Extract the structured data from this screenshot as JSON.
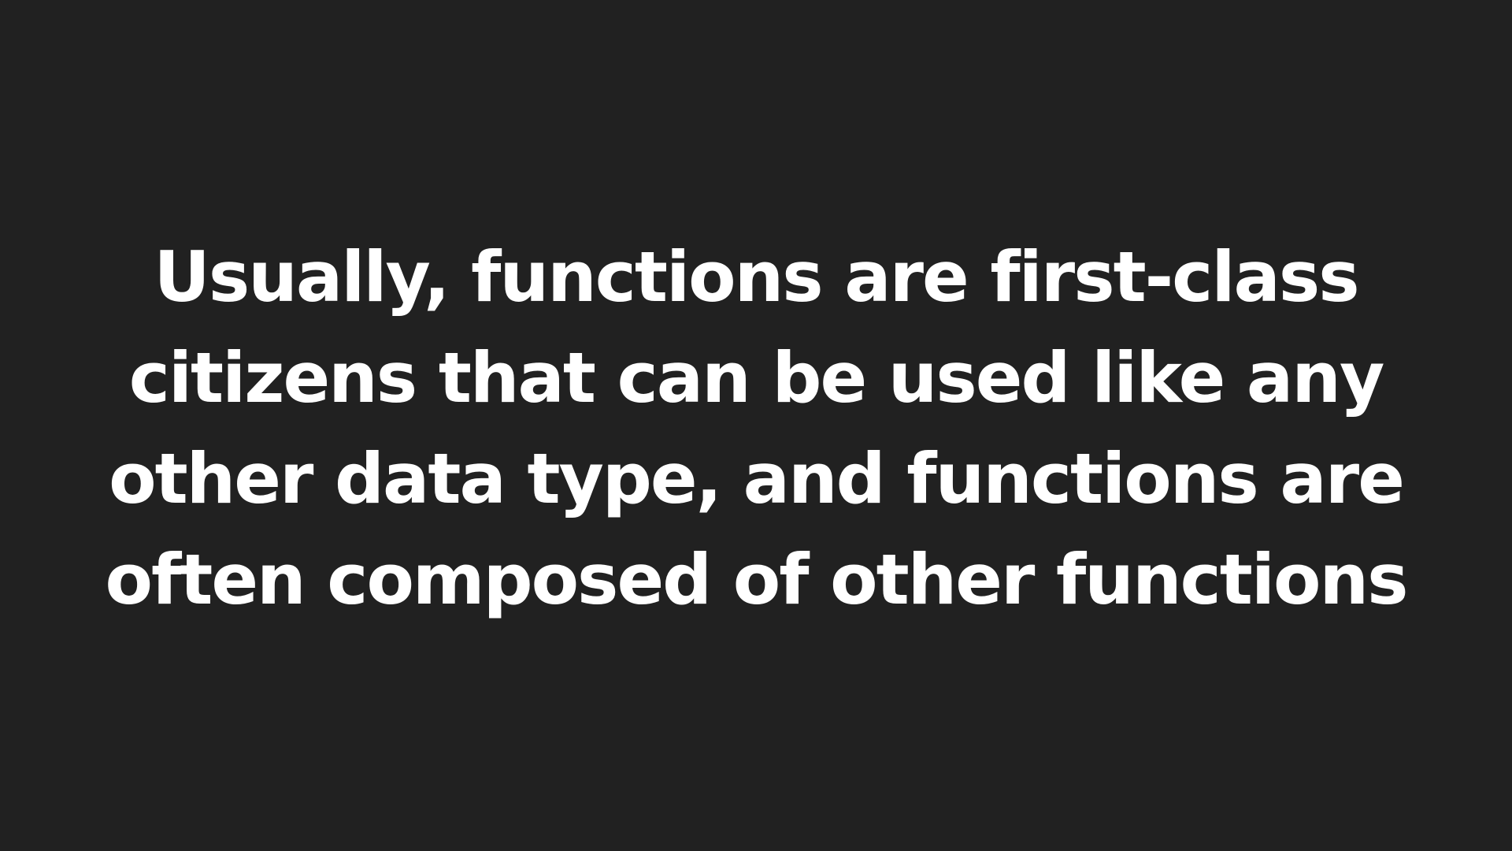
{
  "slide": {
    "background_color": "#212121",
    "text_color": "#ffffff",
    "lines": [
      "Usually, functions are first-class",
      "citizens that can be used like any",
      "other data type, and functions are",
      "often composed of other functions"
    ]
  }
}
